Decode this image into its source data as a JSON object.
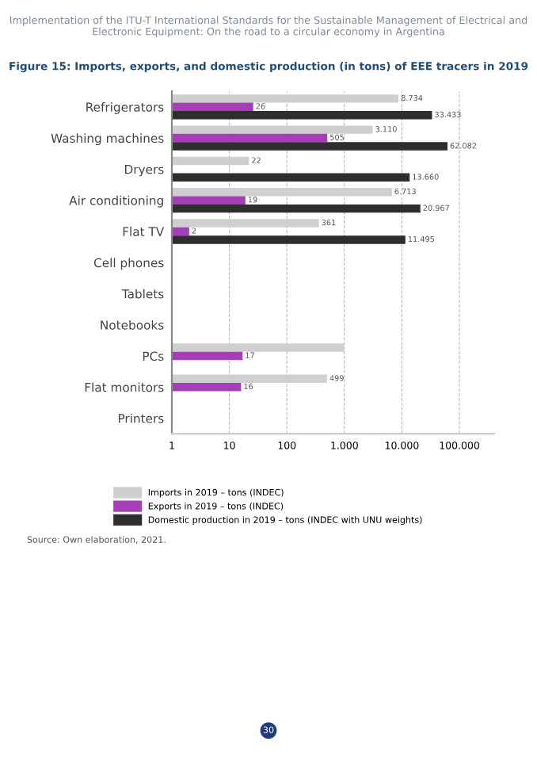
{
  "chart_data": {
    "type": "bar",
    "orientation": "horizontal",
    "title": "Figure 15: Imports, exports, and domestic production (in tons) of EEE tracers in 2019",
    "categories": [
      "Refrigerators",
      "Washing machines",
      "Dryers",
      "Air conditioning",
      "Flat TV",
      "Cell phones",
      "Tablets",
      "Notebooks",
      "PCs",
      "Flat monitors",
      "Printers"
    ],
    "series": [
      {
        "name": "Imports in 2019 – tons (INDEC)",
        "color": "#cfcfcf",
        "values": [
          8734,
          3110,
          22,
          6713,
          361,
          null,
          null,
          null,
          1000,
          499,
          null
        ],
        "value_labels": [
          "8.734",
          "3.110",
          "22",
          "6.713",
          "361",
          null,
          null,
          null,
          null,
          "499",
          null
        ]
      },
      {
        "name": "Exports in 2019 – tons (INDEC)",
        "color": "#a43fb5",
        "values": [
          26,
          505,
          null,
          19,
          2,
          null,
          null,
          null,
          17,
          16,
          null
        ],
        "value_labels": [
          "26",
          "505",
          null,
          "19",
          "2",
          null,
          null,
          null,
          "17",
          "16",
          null
        ]
      },
      {
        "name": "Domestic production in 2019 – tons (INDEC with UNU weights)",
        "color": "#2e2e2e",
        "values": [
          33433,
          62082,
          13660,
          20967,
          11495,
          null,
          null,
          null,
          null,
          null,
          null
        ],
        "value_labels": [
          "33.433",
          "62.082",
          "13.660",
          "20.967",
          "11.495",
          null,
          null,
          null,
          null,
          null,
          null
        ]
      }
    ],
    "log": "x",
    "xlim": [
      1,
      400000
    ],
    "xticks": [
      1,
      10,
      100,
      {
        "value": 1000,
        "label": "1.000"
      },
      {
        "value": 10000,
        "label": "10.000"
      },
      {
        "value": 100000,
        "label": "100.000"
      }
    ],
    "grid": "x",
    "legend": "bottom",
    "annotations": [
      "Implementation of the ITU-T International Standards for the Sustainable Management of Electrical and Electronic Equipment: On the road to a circular economy in Argentina",
      "Source: Own elaboration, 2021.",
      "30"
    ]
  }
}
